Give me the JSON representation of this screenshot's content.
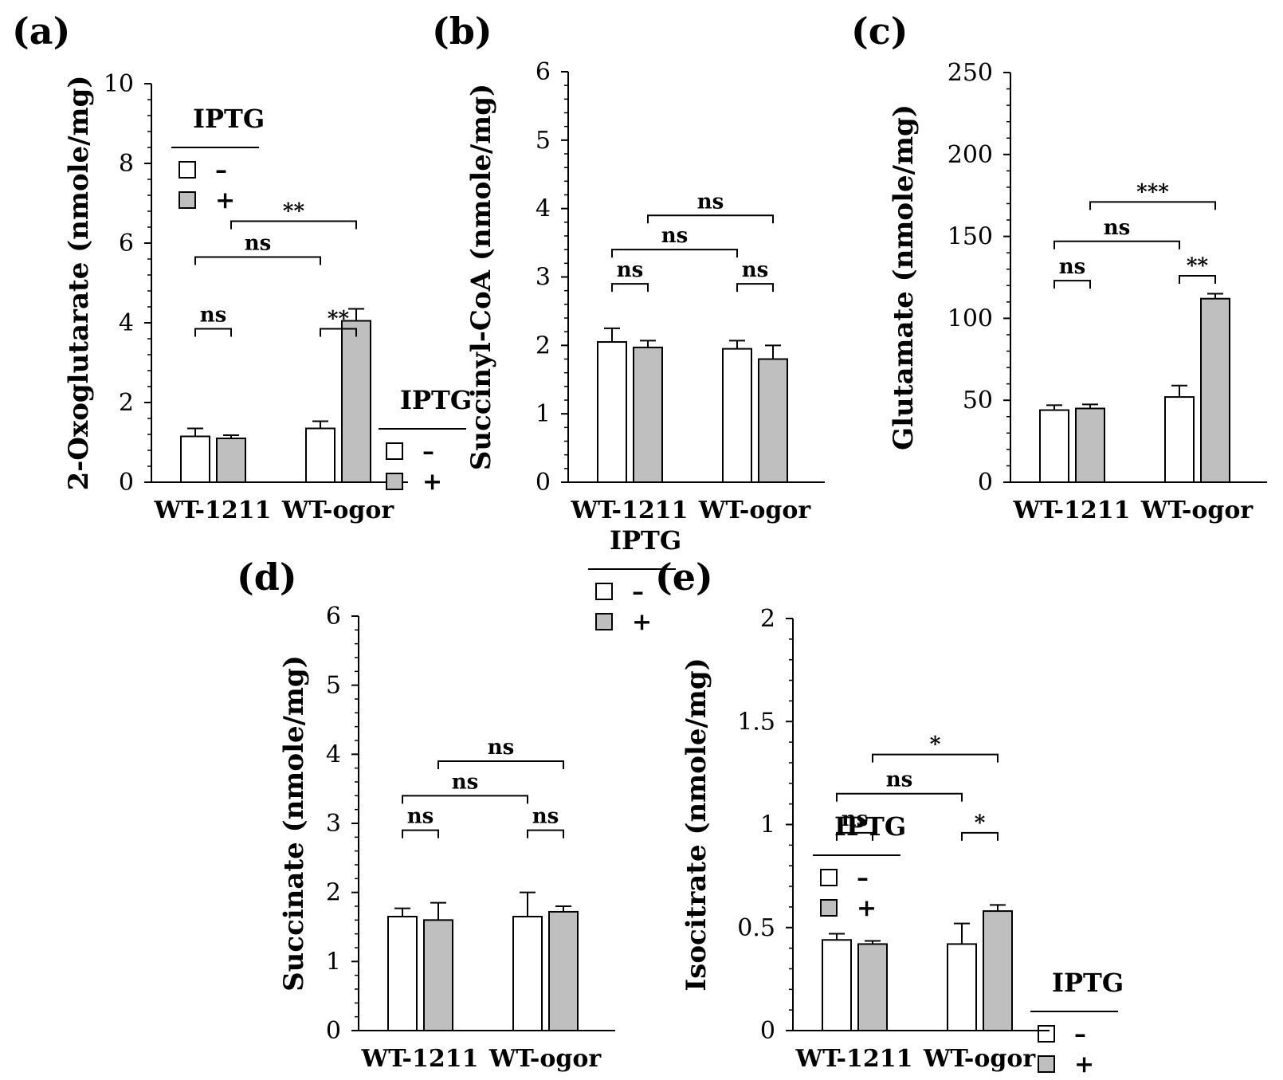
{
  "figure": {
    "legend_title": "IPTG",
    "legend_items": [
      {
        "symbol": "–",
        "fill": "#ffffff"
      },
      {
        "symbol": "+",
        "fill": "#bfbfbf"
      }
    ],
    "colors": {
      "off": "#ffffff",
      "on": "#bfbfbf",
      "stroke": "#000000"
    }
  },
  "chart_data": [
    {
      "panel_label": "(a)",
      "type": "bar",
      "ylabel": "2-Oxoglutarate (nmole/mg)",
      "ylim": [
        0,
        10
      ],
      "yticks": [
        "0",
        "2",
        "4",
        "6",
        "8",
        "10"
      ],
      "tick_values": [
        0,
        2,
        4,
        6,
        8,
        10
      ],
      "categories": [
        "WT-1211",
        "WT-ogor"
      ],
      "series": [
        {
          "name": "–",
          "values": [
            1.15,
            1.35
          ],
          "errors": [
            0.2,
            0.18
          ]
        },
        {
          "name": "+",
          "values": [
            1.1,
            4.05
          ],
          "errors": [
            0.08,
            0.3
          ]
        }
      ],
      "annotations": [
        {
          "text": "ns",
          "from": [
            0,
            0
          ],
          "to": [
            0,
            1
          ],
          "level": 3.85
        },
        {
          "text": "**",
          "from": [
            1,
            0
          ],
          "to": [
            1,
            1
          ],
          "level": 3.85
        },
        {
          "text": "ns",
          "from": [
            0,
            0
          ],
          "to": [
            1,
            0
          ],
          "level": 5.65
        },
        {
          "text": "**",
          "from": [
            0,
            1
          ],
          "to": [
            1,
            1
          ],
          "level": 6.55
        }
      ]
    },
    {
      "panel_label": "(b)",
      "type": "bar",
      "ylabel": "Succinyl-CoA (nmole/mg)",
      "ylim": [
        0,
        6
      ],
      "yticks": [
        "0",
        "1",
        "2",
        "3",
        "4",
        "5",
        "6"
      ],
      "tick_values": [
        0,
        1,
        2,
        3,
        4,
        5,
        6
      ],
      "categories": [
        "WT-1211",
        "WT-ogor"
      ],
      "series": [
        {
          "name": "–",
          "values": [
            2.05,
            1.95
          ],
          "errors": [
            0.2,
            0.12
          ]
        },
        {
          "name": "+",
          "values": [
            1.97,
            1.8
          ],
          "errors": [
            0.1,
            0.2
          ]
        }
      ],
      "annotations": [
        {
          "text": "ns",
          "from": [
            0,
            0
          ],
          "to": [
            0,
            1
          ],
          "level": 2.9
        },
        {
          "text": "ns",
          "from": [
            1,
            0
          ],
          "to": [
            1,
            1
          ],
          "level": 2.9
        },
        {
          "text": "ns",
          "from": [
            0,
            0
          ],
          "to": [
            1,
            0
          ],
          "level": 3.4
        },
        {
          "text": "ns",
          "from": [
            0,
            1
          ],
          "to": [
            1,
            1
          ],
          "level": 3.9
        }
      ]
    },
    {
      "panel_label": "(c)",
      "type": "bar",
      "ylabel": "Glutamate (nmole/mg)",
      "ylim": [
        0,
        250
      ],
      "yticks": [
        "0",
        "50",
        "100",
        "150",
        "200",
        "250"
      ],
      "tick_values": [
        0,
        50,
        100,
        150,
        200,
        250
      ],
      "categories": [
        "WT-1211",
        "WT-ogor"
      ],
      "series": [
        {
          "name": "–",
          "values": [
            44,
            52
          ],
          "errors": [
            3,
            7
          ]
        },
        {
          "name": "+",
          "values": [
            45,
            112
          ],
          "errors": [
            2.5,
            3
          ]
        }
      ],
      "annotations": [
        {
          "text": "ns",
          "from": [
            0,
            0
          ],
          "to": [
            0,
            1
          ],
          "level": 123
        },
        {
          "text": "**",
          "from": [
            1,
            0
          ],
          "to": [
            1,
            1
          ],
          "level": 126
        },
        {
          "text": "ns",
          "from": [
            0,
            0
          ],
          "to": [
            1,
            0
          ],
          "level": 147
        },
        {
          "text": "***",
          "from": [
            0,
            1
          ],
          "to": [
            1,
            1
          ],
          "level": 171
        }
      ]
    },
    {
      "panel_label": "(d)",
      "type": "bar",
      "ylabel": "Succinate (nmole/mg)",
      "ylim": [
        0,
        6
      ],
      "yticks": [
        "0",
        "1",
        "2",
        "3",
        "4",
        "5",
        "6"
      ],
      "tick_values": [
        0,
        1,
        2,
        3,
        4,
        5,
        6
      ],
      "categories": [
        "WT-1211",
        "WT-ogor"
      ],
      "series": [
        {
          "name": "–",
          "values": [
            1.65,
            1.65
          ],
          "errors": [
            0.12,
            0.35
          ]
        },
        {
          "name": "+",
          "values": [
            1.6,
            1.72
          ],
          "errors": [
            0.25,
            0.08
          ]
        }
      ],
      "annotations": [
        {
          "text": "ns",
          "from": [
            0,
            0
          ],
          "to": [
            0,
            1
          ],
          "level": 2.9
        },
        {
          "text": "ns",
          "from": [
            1,
            0
          ],
          "to": [
            1,
            1
          ],
          "level": 2.9
        },
        {
          "text": "ns",
          "from": [
            0,
            0
          ],
          "to": [
            1,
            0
          ],
          "level": 3.4
        },
        {
          "text": "ns",
          "from": [
            0,
            1
          ],
          "to": [
            1,
            1
          ],
          "level": 3.9
        }
      ]
    },
    {
      "panel_label": "(e)",
      "type": "bar",
      "ylabel": "Isocitrate (nmole/mg)",
      "ylim": [
        0,
        2
      ],
      "yticks": [
        "0",
        "0.5",
        "1",
        "1.5",
        "2"
      ],
      "tick_values": [
        0,
        0.5,
        1,
        1.5,
        2
      ],
      "categories": [
        "WT-1211",
        "WT-ogor"
      ],
      "series": [
        {
          "name": "–",
          "values": [
            0.44,
            0.42
          ],
          "errors": [
            0.03,
            0.1
          ]
        },
        {
          "name": "+",
          "values": [
            0.42,
            0.58
          ],
          "errors": [
            0.015,
            0.03
          ]
        }
      ],
      "annotations": [
        {
          "text": "ns",
          "from": [
            0,
            0
          ],
          "to": [
            0,
            1
          ],
          "level": 0.96
        },
        {
          "text": "*",
          "from": [
            1,
            0
          ],
          "to": [
            1,
            1
          ],
          "level": 0.96
        },
        {
          "text": "ns",
          "from": [
            0,
            0
          ],
          "to": [
            1,
            0
          ],
          "level": 1.15
        },
        {
          "text": "*",
          "from": [
            0,
            1
          ],
          "to": [
            1,
            1
          ],
          "level": 1.34
        }
      ]
    }
  ]
}
